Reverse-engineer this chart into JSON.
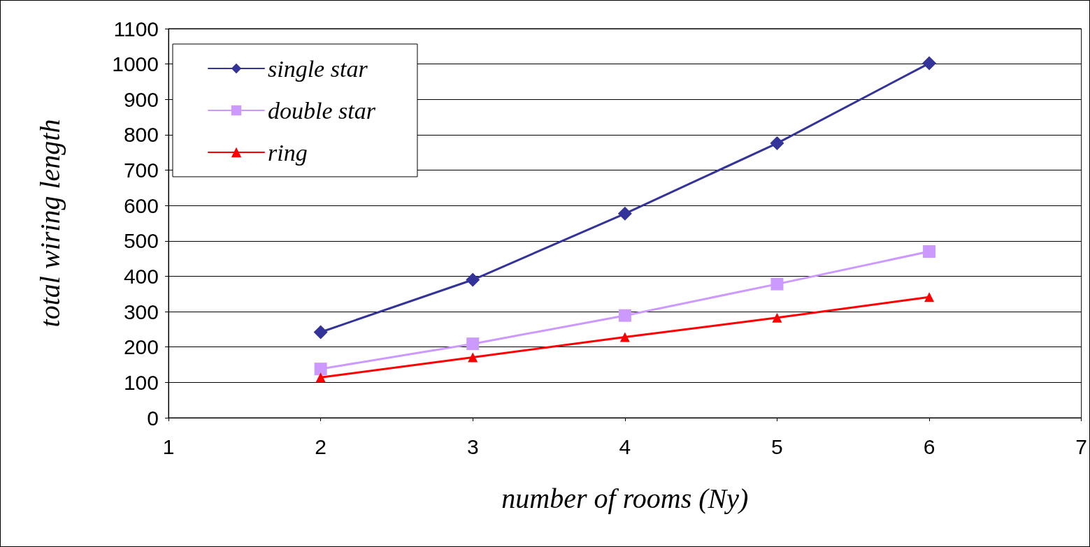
{
  "chart_data": {
    "type": "line",
    "xlabel": "number of rooms (Ny)",
    "ylabel": "total wiring length",
    "x": [
      2,
      3,
      4,
      5,
      6
    ],
    "series": [
      {
        "name": "single star",
        "color": "#333399",
        "marker": "diamond",
        "values": [
          242,
          390,
          577,
          776,
          1002
        ]
      },
      {
        "name": "double star",
        "color": "#cc99ff",
        "marker": "square",
        "values": [
          138,
          209,
          289,
          378,
          470
        ]
      },
      {
        "name": "ring",
        "color": "#ff0000",
        "marker": "triangle",
        "values": [
          114,
          171,
          228,
          283,
          341
        ]
      }
    ],
    "xlim": [
      1,
      7
    ],
    "xticks": [
      1,
      2,
      3,
      4,
      5,
      6,
      7
    ],
    "ylim": [
      0,
      1100
    ],
    "yticks": [
      0,
      100,
      200,
      300,
      400,
      500,
      600,
      700,
      800,
      900,
      1000,
      1100
    ],
    "grid": "y",
    "legend": "top left",
    "line_style": "solid"
  }
}
